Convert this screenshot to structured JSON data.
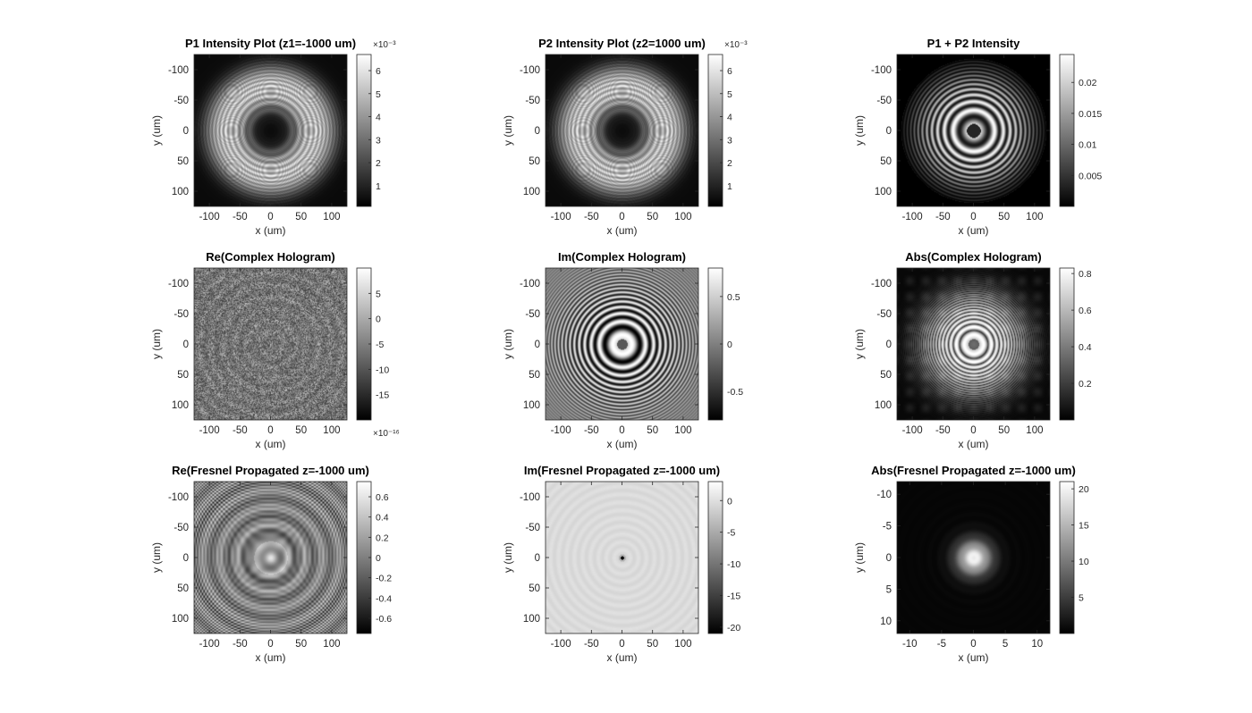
{
  "figure": {
    "chart_data": [
      {
        "type": "heatmap",
        "pattern": "ring",
        "colormap": "gray",
        "title": "P1 Intensity Plot (z1=-1000 um)",
        "xlabel": "x (um)",
        "ylabel": "y (um)",
        "xlim": [
          -125,
          125
        ],
        "ylim": [
          -125,
          125
        ],
        "xticks": [
          -100,
          -50,
          0,
          50,
          100
        ],
        "xtick_labels": [
          "-100",
          "-50",
          "0",
          "50",
          "100"
        ],
        "yticks": [
          -100,
          -50,
          0,
          50,
          100
        ],
        "ytick_labels": [
          "-100",
          "-50",
          "0",
          "50",
          "100"
        ],
        "clim": [
          0.0001,
          0.0067
        ],
        "cticks": [
          0.001,
          0.002,
          0.003,
          0.004,
          0.005,
          0.006
        ],
        "ctick_labels": [
          "1",
          "2",
          "3",
          "4",
          "5",
          "6"
        ],
        "cexp": "×10⁻³",
        "cexp_pos": "top"
      },
      {
        "type": "heatmap",
        "pattern": "ring",
        "colormap": "gray",
        "title": "P2 Intensity Plot (z2=1000 um)",
        "xlabel": "x (um)",
        "ylabel": "y (um)",
        "xlim": [
          -125,
          125
        ],
        "ylim": [
          -125,
          125
        ],
        "xticks": [
          -100,
          -50,
          0,
          50,
          100
        ],
        "xtick_labels": [
          "-100",
          "-50",
          "0",
          "50",
          "100"
        ],
        "yticks": [
          -100,
          -50,
          0,
          50,
          100
        ],
        "ytick_labels": [
          "-100",
          "-50",
          "0",
          "50",
          "100"
        ],
        "clim": [
          0.0001,
          0.0067
        ],
        "cticks": [
          0.001,
          0.002,
          0.003,
          0.004,
          0.005,
          0.006
        ],
        "ctick_labels": [
          "1",
          "2",
          "3",
          "4",
          "5",
          "6"
        ],
        "cexp": "×10⁻³",
        "cexp_pos": "top"
      },
      {
        "type": "heatmap",
        "pattern": "fringes",
        "colormap": "gray",
        "title": "P1 + P2 Intensity",
        "xlabel": "x (um)",
        "ylabel": "y (um)",
        "xlim": [
          -125,
          125
        ],
        "ylim": [
          -125,
          125
        ],
        "xticks": [
          -100,
          -50,
          0,
          50,
          100
        ],
        "xtick_labels": [
          "-100",
          "-50",
          "0",
          "50",
          "100"
        ],
        "yticks": [
          -100,
          -50,
          0,
          50,
          100
        ],
        "ytick_labels": [
          "-100",
          "-50",
          "0",
          "50",
          "100"
        ],
        "clim": [
          0,
          0.0245
        ],
        "cticks": [
          0.005,
          0.01,
          0.015,
          0.02
        ],
        "ctick_labels": [
          "0.005",
          "0.01",
          "0.015",
          "0.02"
        ],
        "cexp": "",
        "cexp_pos": ""
      },
      {
        "type": "heatmap",
        "pattern": "noise",
        "colormap": "gray",
        "title": "Re(Complex Hologram)",
        "xlabel": "x (um)",
        "ylabel": "y (um)",
        "xlim": [
          -125,
          125
        ],
        "ylim": [
          -125,
          125
        ],
        "xticks": [
          -100,
          -50,
          0,
          50,
          100
        ],
        "xtick_labels": [
          "-100",
          "-50",
          "0",
          "50",
          "100"
        ],
        "yticks": [
          -100,
          -50,
          0,
          50,
          100
        ],
        "ytick_labels": [
          "-100",
          "-50",
          "0",
          "50",
          "100"
        ],
        "clim": [
          -2e-15,
          1e-15
        ],
        "cticks": [
          -1.5e-15,
          -1e-15,
          -5e-16,
          0,
          5e-16
        ],
        "ctick_labels": [
          "-15",
          "-10",
          "-5",
          "0",
          "5"
        ],
        "cexp": "×10⁻¹⁶",
        "cexp_pos": "bottom"
      },
      {
        "type": "heatmap",
        "pattern": "fringes_im",
        "colormap": "gray",
        "title": "Im(Complex Hologram)",
        "xlabel": "x (um)",
        "ylabel": "y (um)",
        "xlim": [
          -125,
          125
        ],
        "ylim": [
          -125,
          125
        ],
        "xticks": [
          -100,
          -50,
          0,
          50,
          100
        ],
        "xtick_labels": [
          "-100",
          "-50",
          "0",
          "50",
          "100"
        ],
        "yticks": [
          -100,
          -50,
          0,
          50,
          100
        ],
        "ytick_labels": [
          "-100",
          "-50",
          "0",
          "50",
          "100"
        ],
        "clim": [
          -0.8,
          0.8
        ],
        "cticks": [
          -0.5,
          0,
          0.5
        ],
        "ctick_labels": [
          "-0.5",
          "0",
          "0.5"
        ],
        "cexp": "",
        "cexp_pos": ""
      },
      {
        "type": "heatmap",
        "pattern": "fringes_abs",
        "colormap": "gray",
        "title": "Abs(Complex Hologram)",
        "xlabel": "x (um)",
        "ylabel": "y (um)",
        "xlim": [
          -125,
          125
        ],
        "ylim": [
          -125,
          125
        ],
        "xticks": [
          -100,
          -50,
          0,
          50,
          100
        ],
        "xtick_labels": [
          "-100",
          "-50",
          "0",
          "50",
          "100"
        ],
        "yticks": [
          -100,
          -50,
          0,
          50,
          100
        ],
        "ytick_labels": [
          "-100",
          "-50",
          "0",
          "50",
          "100"
        ],
        "clim": [
          0,
          0.83
        ],
        "cticks": [
          0.2,
          0.4,
          0.6,
          0.8
        ],
        "ctick_labels": [
          "0.2",
          "0.4",
          "0.6",
          "0.8"
        ],
        "cexp": "",
        "cexp_pos": ""
      },
      {
        "type": "heatmap",
        "pattern": "re_prop",
        "colormap": "gray",
        "title": "Re(Fresnel Propagated z=-1000 um)",
        "xlabel": "x (um)",
        "ylabel": "y (um)",
        "xlim": [
          -125,
          125
        ],
        "ylim": [
          -125,
          125
        ],
        "xticks": [
          -100,
          -50,
          0,
          50,
          100
        ],
        "xtick_labels": [
          "-100",
          "-50",
          "0",
          "50",
          "100"
        ],
        "yticks": [
          -100,
          -50,
          0,
          50,
          100
        ],
        "ytick_labels": [
          "-100",
          "-50",
          "0",
          "50",
          "100"
        ],
        "clim": [
          -0.75,
          0.75
        ],
        "cticks": [
          -0.6,
          -0.4,
          -0.2,
          0,
          0.2,
          0.4,
          0.6
        ],
        "ctick_labels": [
          "-0.6",
          "-0.4",
          "-0.2",
          "0",
          "0.2",
          "0.4",
          "0.6"
        ],
        "cexp": "",
        "cexp_pos": ""
      },
      {
        "type": "heatmap",
        "pattern": "im_prop",
        "colormap": "gray",
        "title": "Im(Fresnel Propagated z=-1000 um)",
        "xlabel": "x (um)",
        "ylabel": "y (um)",
        "xlim": [
          -125,
          125
        ],
        "ylim": [
          -125,
          125
        ],
        "xticks": [
          -100,
          -50,
          0,
          50,
          100
        ],
        "xtick_labels": [
          "-100",
          "-50",
          "0",
          "50",
          "100"
        ],
        "yticks": [
          -100,
          -50,
          0,
          50,
          100
        ],
        "ytick_labels": [
          "-100",
          "-50",
          "0",
          "50",
          "100"
        ],
        "clim": [
          -21,
          3
        ],
        "cticks": [
          -20,
          -15,
          -10,
          -5,
          0
        ],
        "ctick_labels": [
          "-20",
          "-15",
          "-10",
          "-5",
          "0"
        ],
        "cexp": "",
        "cexp_pos": ""
      },
      {
        "type": "heatmap",
        "pattern": "airy",
        "colormap": "gray",
        "title": "Abs(Fresnel Propagated z=-1000 um)",
        "xlabel": "x (um)",
        "ylabel": "y (um)",
        "xlim": [
          -12,
          12
        ],
        "ylim": [
          -12,
          12
        ],
        "xticks": [
          -10,
          -5,
          0,
          5,
          10
        ],
        "xtick_labels": [
          "-10",
          "-5",
          "0",
          "5",
          "10"
        ],
        "yticks": [
          -10,
          -5,
          0,
          5,
          10
        ],
        "ytick_labels": [
          "-10",
          "-5",
          "0",
          "5",
          "10"
        ],
        "clim": [
          0,
          21
        ],
        "cticks": [
          5,
          10,
          15,
          20
        ],
        "ctick_labels": [
          "5",
          "10",
          "15",
          "20"
        ],
        "cexp": "",
        "cexp_pos": ""
      }
    ]
  }
}
